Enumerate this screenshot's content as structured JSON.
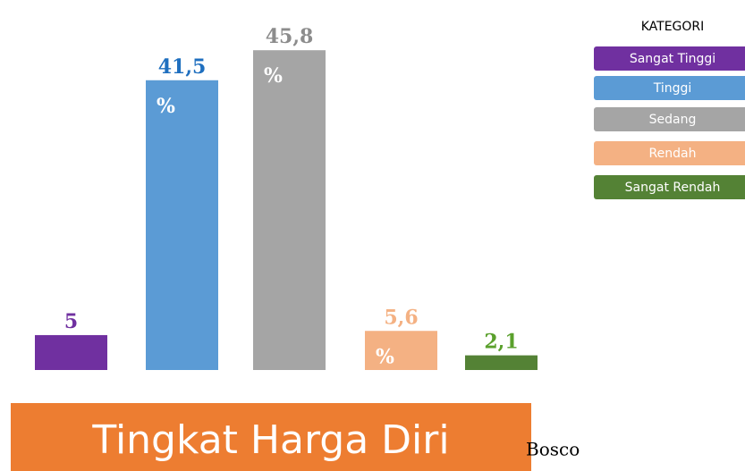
{
  "chart_data": {
    "type": "bar",
    "title": "Tingkat Harga Diri",
    "annotation": "Bosco",
    "categories": [
      "Sangat Tinggi",
      "Tinggi",
      "Sedang",
      "Rendah",
      "Sangat Rendah"
    ],
    "values": [
      5,
      41.5,
      45.8,
      5.6,
      2.1
    ],
    "value_labels": [
      "5",
      "41,5 %",
      "45,8 %",
      "5,6 %",
      "2,1"
    ],
    "colors": [
      "#7030a0",
      "#5b9bd5",
      "#a5a5a5",
      "#f4b183",
      "#548235"
    ],
    "label_colors": [
      "#7030a0",
      "#1f6fbf",
      "#8c8c8c",
      "#f4b183",
      "#5aa02c"
    ],
    "ylim": [
      0,
      48
    ],
    "legend": {
      "title": "KATEGORI"
    }
  }
}
